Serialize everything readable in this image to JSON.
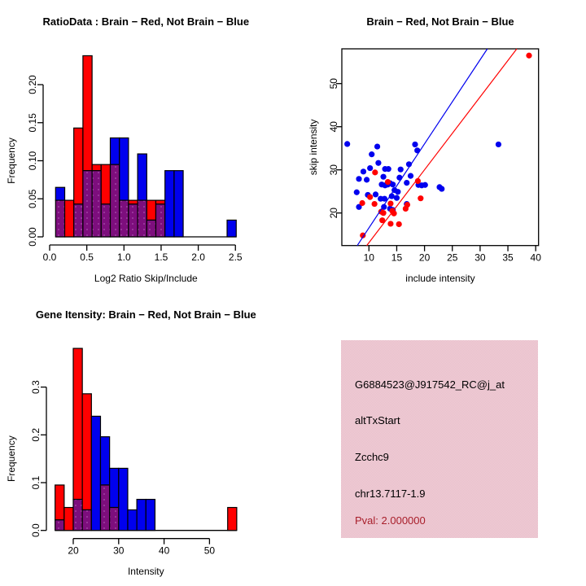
{
  "colors": {
    "red": "#ff0000",
    "blue": "#0000ee",
    "purple": "#7d0e7d",
    "purple_dot": "#aa4fae",
    "pink_bg": "#ecc7d1",
    "pval_red": "#a81e2a",
    "black": "#000000"
  },
  "chart_data": [
    {
      "id": "ratio_hist",
      "type": "bar",
      "title": "RatioData : Brain − Red, Not Brain − Blue",
      "xlabel": "Log2 Ratio Skip/Include",
      "ylabel": "Frequency",
      "xticks": [
        0.0,
        0.5,
        1.0,
        1.5,
        2.0,
        2.5
      ],
      "xtick_labels": [
        "0.0",
        "0.5",
        "1.0",
        "1.5",
        "2.0",
        "2.5"
      ],
      "yticks": [
        0.0,
        0.05,
        0.1,
        0.15,
        0.2
      ],
      "ytick_labels": [
        "0.00",
        "0.05",
        "0.10",
        "0.15",
        "0.20"
      ],
      "xlim": [
        -0.02,
        2.61
      ],
      "ylim": [
        0,
        0.245
      ],
      "grid": false,
      "baseline_extent": [
        0.08,
        2.511
      ],
      "bars": [
        {
          "x0": 0.08,
          "x1": 0.203,
          "red": 0.048,
          "blue": 0.065
        },
        {
          "x0": 0.203,
          "x1": 0.325,
          "red": 0.048,
          "blue": 0
        },
        {
          "x0": 0.325,
          "x1": 0.448,
          "red": 0.143,
          "blue": 0.043
        },
        {
          "x0": 0.448,
          "x1": 0.571,
          "red": 0.238,
          "blue": 0.087
        },
        {
          "x0": 0.571,
          "x1": 0.693,
          "red": 0.095,
          "blue": 0.087
        },
        {
          "x0": 0.693,
          "x1": 0.816,
          "red": 0.095,
          "blue": 0.043
        },
        {
          "x0": 0.816,
          "x1": 0.939,
          "red": 0.095,
          "blue": 0.13
        },
        {
          "x0": 0.939,
          "x1": 1.061,
          "red": 0.048,
          "blue": 0.13
        },
        {
          "x0": 1.061,
          "x1": 1.184,
          "red": 0.048,
          "blue": 0.043
        },
        {
          "x0": 1.184,
          "x1": 1.307,
          "red": 0.048,
          "blue": 0.109
        },
        {
          "x0": 1.307,
          "x1": 1.429,
          "red": 0.048,
          "blue": 0.022
        },
        {
          "x0": 1.429,
          "x1": 1.552,
          "red": 0.048,
          "blue": 0.043
        },
        {
          "x0": 1.552,
          "x1": 1.675,
          "red": 0,
          "blue": 0.087
        },
        {
          "x0": 1.675,
          "x1": 1.797,
          "red": 0,
          "blue": 0.087
        },
        {
          "x0": 2.388,
          "x1": 2.511,
          "red": 0,
          "blue": 0.022
        }
      ]
    },
    {
      "id": "scatter",
      "type": "scatter",
      "title": "Brain − Red, Not Brain − Blue",
      "xlabel": "include intensity",
      "ylabel": "skip intensity",
      "xticks": [
        10,
        15,
        20,
        25,
        30,
        35,
        40
      ],
      "xtick_labels": [
        "10",
        "15",
        "20",
        "25",
        "30",
        "35",
        "40"
      ],
      "yticks": [
        20,
        30,
        40,
        50
      ],
      "ytick_labels": [
        "20",
        "30",
        "40",
        "50"
      ],
      "xlim": [
        5.1,
        40.5
      ],
      "ylim": [
        12.45,
        58.06
      ],
      "grid": false,
      "blue_points": [
        [
          6.1,
          36.0
        ],
        [
          11.5,
          35.4
        ],
        [
          10.5,
          33.6
        ],
        [
          18.3,
          35.9
        ],
        [
          18.7,
          34.5
        ],
        [
          11.7,
          31.6
        ],
        [
          17.2,
          31.3
        ],
        [
          12.9,
          30.2
        ],
        [
          13.5,
          30.2
        ],
        [
          10.2,
          30.4
        ],
        [
          15.7,
          30.1
        ],
        [
          9.0,
          29.6
        ],
        [
          12.6,
          28.4
        ],
        [
          17.5,
          28.6
        ],
        [
          8.2,
          27.9
        ],
        [
          9.6,
          27.7
        ],
        [
          15.5,
          28.2
        ],
        [
          13.8,
          26.9
        ],
        [
          14.3,
          26.6
        ],
        [
          18.9,
          26.5
        ],
        [
          19.5,
          26.4
        ],
        [
          20.1,
          26.5
        ],
        [
          7.8,
          24.8
        ],
        [
          12.3,
          26.6
        ],
        [
          12.9,
          26.4
        ],
        [
          13.4,
          26.6
        ],
        [
          9.8,
          24.2
        ],
        [
          14.6,
          25.3
        ],
        [
          15.2,
          24.9
        ],
        [
          16.8,
          27.0
        ],
        [
          22.7,
          26.0
        ],
        [
          23.1,
          25.6
        ],
        [
          11.2,
          24.3
        ],
        [
          14.1,
          23.9
        ],
        [
          15.0,
          23.5
        ],
        [
          12.1,
          23.3
        ],
        [
          12.8,
          23.3
        ],
        [
          8.2,
          21.4
        ],
        [
          12.7,
          21.4
        ],
        [
          13.8,
          21.0
        ],
        [
          14.3,
          20.7
        ],
        [
          16.8,
          22.1
        ],
        [
          33.3,
          35.9
        ]
      ],
      "red_points": [
        [
          11.1,
          29.4
        ],
        [
          13.4,
          27.2
        ],
        [
          18.8,
          27.4
        ],
        [
          10.2,
          23.7
        ],
        [
          19.3,
          23.4
        ],
        [
          8.8,
          22.3
        ],
        [
          11.0,
          22.1
        ],
        [
          13.9,
          22.2
        ],
        [
          16.9,
          21.9
        ],
        [
          12.2,
          20.3
        ],
        [
          12.6,
          20.0
        ],
        [
          14.2,
          20.5
        ],
        [
          14.5,
          19.9
        ],
        [
          16.6,
          21.0
        ],
        [
          12.4,
          18.3
        ],
        [
          13.9,
          17.5
        ],
        [
          15.4,
          17.4
        ],
        [
          8.9,
          14.8
        ],
        [
          38.8,
          56.5
        ]
      ],
      "lines": [
        {
          "color": "blue",
          "x1": 7.9,
          "y1": 12.45,
          "x2": 31.3,
          "y2": 58.06
        },
        {
          "color": "red",
          "x1": 9.6,
          "y1": 12.45,
          "x2": 36.6,
          "y2": 58.06
        }
      ]
    },
    {
      "id": "gene_hist",
      "type": "bar",
      "title": "Gene Itensity: Brain − Red, Not Brain − Blue",
      "xlabel": "Intensity",
      "ylabel": "Frequency",
      "xticks": [
        20,
        30,
        40,
        50
      ],
      "xtick_labels": [
        "20",
        "30",
        "40",
        "50"
      ],
      "yticks": [
        0.0,
        0.1,
        0.2,
        0.3
      ],
      "ytick_labels": [
        "0.0",
        "0.1",
        "0.2",
        "0.3"
      ],
      "xlim": [
        14.4,
        57.6
      ],
      "ylim": [
        0,
        0.395
      ],
      "grid": false,
      "baseline_extent": [
        16,
        56
      ],
      "bars": [
        {
          "x0": 16,
          "x1": 18,
          "red": 0.095,
          "blue": 0.022
        },
        {
          "x0": 18,
          "x1": 20,
          "red": 0.048,
          "blue": 0
        },
        {
          "x0": 20,
          "x1": 22,
          "red": 0.381,
          "blue": 0.065
        },
        {
          "x0": 22,
          "x1": 24,
          "red": 0.286,
          "blue": 0.043
        },
        {
          "x0": 24,
          "x1": 26,
          "red": 0,
          "blue": 0.239
        },
        {
          "x0": 26,
          "x1": 28,
          "red": 0.095,
          "blue": 0.196
        },
        {
          "x0": 28,
          "x1": 30,
          "red": 0.048,
          "blue": 0.13
        },
        {
          "x0": 30,
          "x1": 32,
          "red": 0,
          "blue": 0.13
        },
        {
          "x0": 32,
          "x1": 34,
          "red": 0,
          "blue": 0.043
        },
        {
          "x0": 34,
          "x1": 36,
          "red": 0,
          "blue": 0.065
        },
        {
          "x0": 36,
          "x1": 38,
          "red": 0,
          "blue": 0.065
        },
        {
          "x0": 54,
          "x1": 56,
          "red": 0.048,
          "blue": 0
        }
      ]
    }
  ],
  "info_panel": {
    "lines": [
      {
        "text": "G6884523@J917542_RC@j_at",
        "color": "#000000"
      },
      {
        "text": "altTxStart",
        "color": "#000000"
      },
      {
        "text": "Zcchc9",
        "color": "#000000"
      },
      {
        "text": "chr13.7117-1.9",
        "color": "#000000"
      },
      {
        "text": "Pval: 2.000000",
        "color": "#a81e2a"
      }
    ]
  }
}
